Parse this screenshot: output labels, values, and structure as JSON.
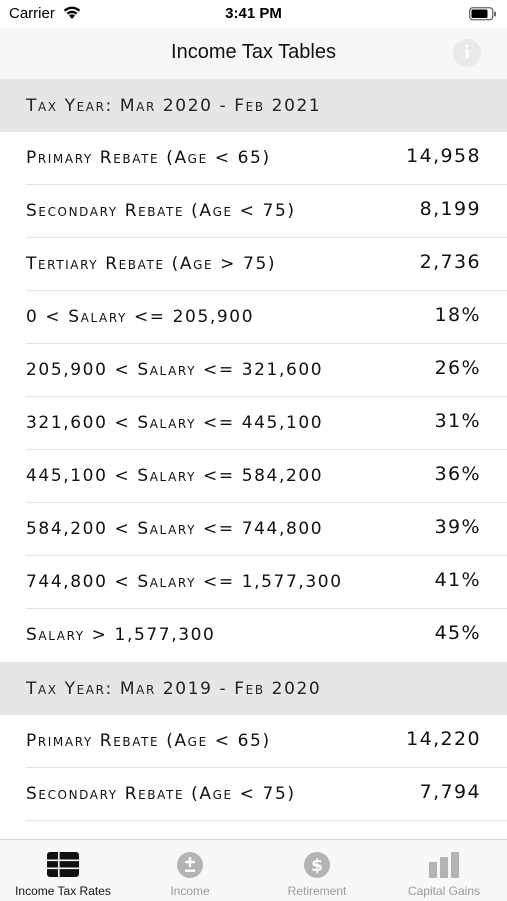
{
  "status": {
    "carrier": "Carrier",
    "time": "3:41 PM"
  },
  "nav": {
    "title": "Income Tax Tables"
  },
  "sections": [
    {
      "header": "Tax Year: Mar 2020 - Feb 2021",
      "rows": [
        {
          "label": "Primary Rebate (Age < 65)",
          "value": "14,958"
        },
        {
          "label": "Secondary Rebate (Age < 75)",
          "value": "8,199"
        },
        {
          "label": "Tertiary Rebate (Age > 75)",
          "value": "2,736"
        },
        {
          "label": "0 < Salary <= 205,900",
          "value": "18%"
        },
        {
          "label": "205,900 < Salary <= 321,600",
          "value": "26%"
        },
        {
          "label": "321,600 < Salary <= 445,100",
          "value": "31%"
        },
        {
          "label": "445,100 < Salary <= 584,200",
          "value": "36%"
        },
        {
          "label": "584,200 < Salary <= 744,800",
          "value": "39%"
        },
        {
          "label": "744,800 < Salary <= 1,577,300",
          "value": "41%"
        },
        {
          "label": "Salary > 1,577,300",
          "value": "45%"
        }
      ]
    },
    {
      "header": "Tax Year: Mar 2019 - Feb 2020",
      "rows": [
        {
          "label": "Primary Rebate (Age < 65)",
          "value": "14,220"
        },
        {
          "label": "Secondary Rebate (Age < 75)",
          "value": "7,794"
        }
      ]
    }
  ],
  "tabs": [
    {
      "label": "Income Tax Rates",
      "icon": "table-icon",
      "active": true
    },
    {
      "label": "Income",
      "icon": "plus-minus-icon",
      "active": false
    },
    {
      "label": "Retirement",
      "icon": "dollar-icon",
      "active": false
    },
    {
      "label": "Capital Gains",
      "icon": "bar-chart-icon",
      "active": false
    }
  ],
  "colors": {
    "active_tab": "#111111",
    "inactive_tab": "#999999",
    "section_bg": "#e6e6e6"
  }
}
